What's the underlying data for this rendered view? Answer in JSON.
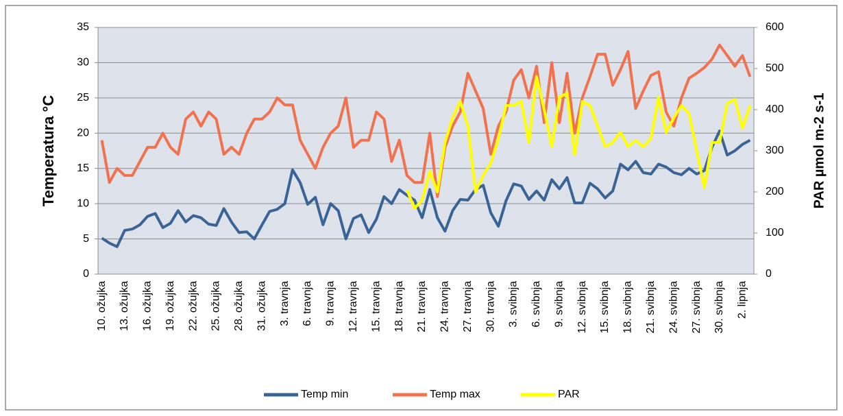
{
  "chart_data": {
    "type": "line",
    "categories": [
      "10. ožujka",
      null,
      null,
      "13. ožujka",
      null,
      null,
      "16. ožujka",
      null,
      null,
      "19. ožujka",
      null,
      null,
      "22. ožujka",
      null,
      null,
      "25. ožujka",
      null,
      null,
      "28. ožujka",
      null,
      null,
      "31. ožujka",
      null,
      null,
      "3. travnja",
      null,
      null,
      "6. travnja",
      null,
      null,
      "9. travnja",
      null,
      null,
      "12. travnja",
      null,
      null,
      "15. travnja",
      null,
      null,
      "18. travnja",
      null,
      null,
      "21. travnja",
      null,
      null,
      "24. travnja",
      null,
      null,
      "27. travnja",
      null,
      null,
      "30. travnja",
      null,
      null,
      "3. svibnja",
      null,
      null,
      "6. svibnja",
      null,
      null,
      "9. svibnja",
      null,
      null,
      "12. svibnja",
      null,
      null,
      "15. svibnja",
      null,
      null,
      "18. svibnja",
      null,
      null,
      "21. svibnja",
      null,
      null,
      "24. svibnja",
      null,
      null,
      "27. svibnja",
      null,
      null,
      "30. svibnja",
      null,
      null,
      "2. lipnja",
      null
    ],
    "series": [
      {
        "name": "Temp min",
        "color": "#3a6495",
        "values": [
          5.1,
          4.4,
          3.9,
          6.2,
          6.4,
          7.0,
          8.2,
          8.6,
          6.6,
          7.2,
          9.0,
          7.4,
          8.3,
          8.0,
          7.1,
          6.9,
          9.3,
          7.4,
          5.9,
          6.0,
          5.0,
          7.0,
          8.9,
          9.2,
          10.0,
          14.8,
          13.0,
          9.9,
          10.9,
          7.0,
          10.0,
          9.0,
          5.0,
          7.9,
          8.4,
          5.9,
          7.8,
          11.0,
          10.0,
          12.0,
          11.2,
          10.5,
          8.0,
          12.0,
          8.0,
          6.1,
          9.0,
          10.6,
          10.5,
          12.0,
          12.6,
          8.7,
          6.8,
          10.4,
          12.8,
          12.5,
          10.6,
          11.8,
          10.5,
          13.4,
          12.1,
          13.7,
          10.1,
          10.1,
          12.9,
          12.1,
          10.8,
          11.8,
          15.6,
          14.8,
          16.0,
          14.4,
          14.2,
          15.6,
          15.2,
          14.4,
          14.1,
          15.0,
          14.2,
          14.7,
          18.0,
          20.3,
          16.9,
          17.5,
          18.4,
          19.0
        ]
      },
      {
        "name": "Temp max",
        "color": "#f2714f",
        "values": [
          19,
          13,
          15,
          14,
          14,
          16,
          18,
          18,
          20,
          18,
          17,
          22,
          23,
          21,
          23,
          22,
          17,
          18,
          17,
          20,
          22,
          22,
          23,
          25,
          24,
          24,
          19,
          17,
          15,
          18,
          20,
          21,
          25,
          18,
          19,
          19,
          23,
          22,
          16,
          19,
          14,
          13,
          13,
          20,
          11,
          18,
          21,
          23,
          28.5,
          26,
          23.5,
          17,
          21,
          23,
          27.5,
          29,
          25,
          29.5,
          21.5,
          30,
          21.5,
          28.5,
          20,
          25,
          28,
          31.2,
          31.2,
          26.8,
          29,
          31.6,
          23.5,
          26,
          28.2,
          28.7,
          23,
          21,
          25,
          27.8,
          28.5,
          29.3,
          30.5,
          32.5,
          31,
          29.5,
          31,
          28
        ]
      },
      {
        "name": "PAR",
        "color": "#ffff00",
        "axis": "y2",
        "values": [
          null,
          null,
          null,
          null,
          null,
          null,
          null,
          null,
          null,
          null,
          null,
          null,
          null,
          null,
          null,
          null,
          null,
          null,
          null,
          null,
          null,
          null,
          null,
          null,
          null,
          null,
          null,
          null,
          null,
          null,
          null,
          null,
          null,
          null,
          null,
          null,
          null,
          null,
          null,
          null,
          205,
          160,
          180,
          250,
          200,
          320,
          380,
          420,
          360,
          200,
          240,
          270,
          330,
          410,
          410,
          420,
          320,
          480,
          400,
          310,
          430,
          440,
          290,
          420,
          410,
          360,
          310,
          320,
          345,
          310,
          325,
          310,
          330,
          430,
          345,
          380,
          410,
          390,
          300,
          210,
          320,
          320,
          415,
          425,
          355,
          410
        ]
      }
    ],
    "ylabel": "Temperatura °C",
    "y2label": "PAR µmol m-2  s-1",
    "ylim": [
      0,
      35
    ],
    "yticks": [
      0,
      5,
      10,
      15,
      20,
      25,
      30,
      35
    ],
    "y2lim": [
      0,
      600
    ],
    "y2ticks": [
      0,
      100,
      200,
      300,
      400,
      500,
      600
    ],
    "grid": true,
    "legend": "bottom"
  }
}
